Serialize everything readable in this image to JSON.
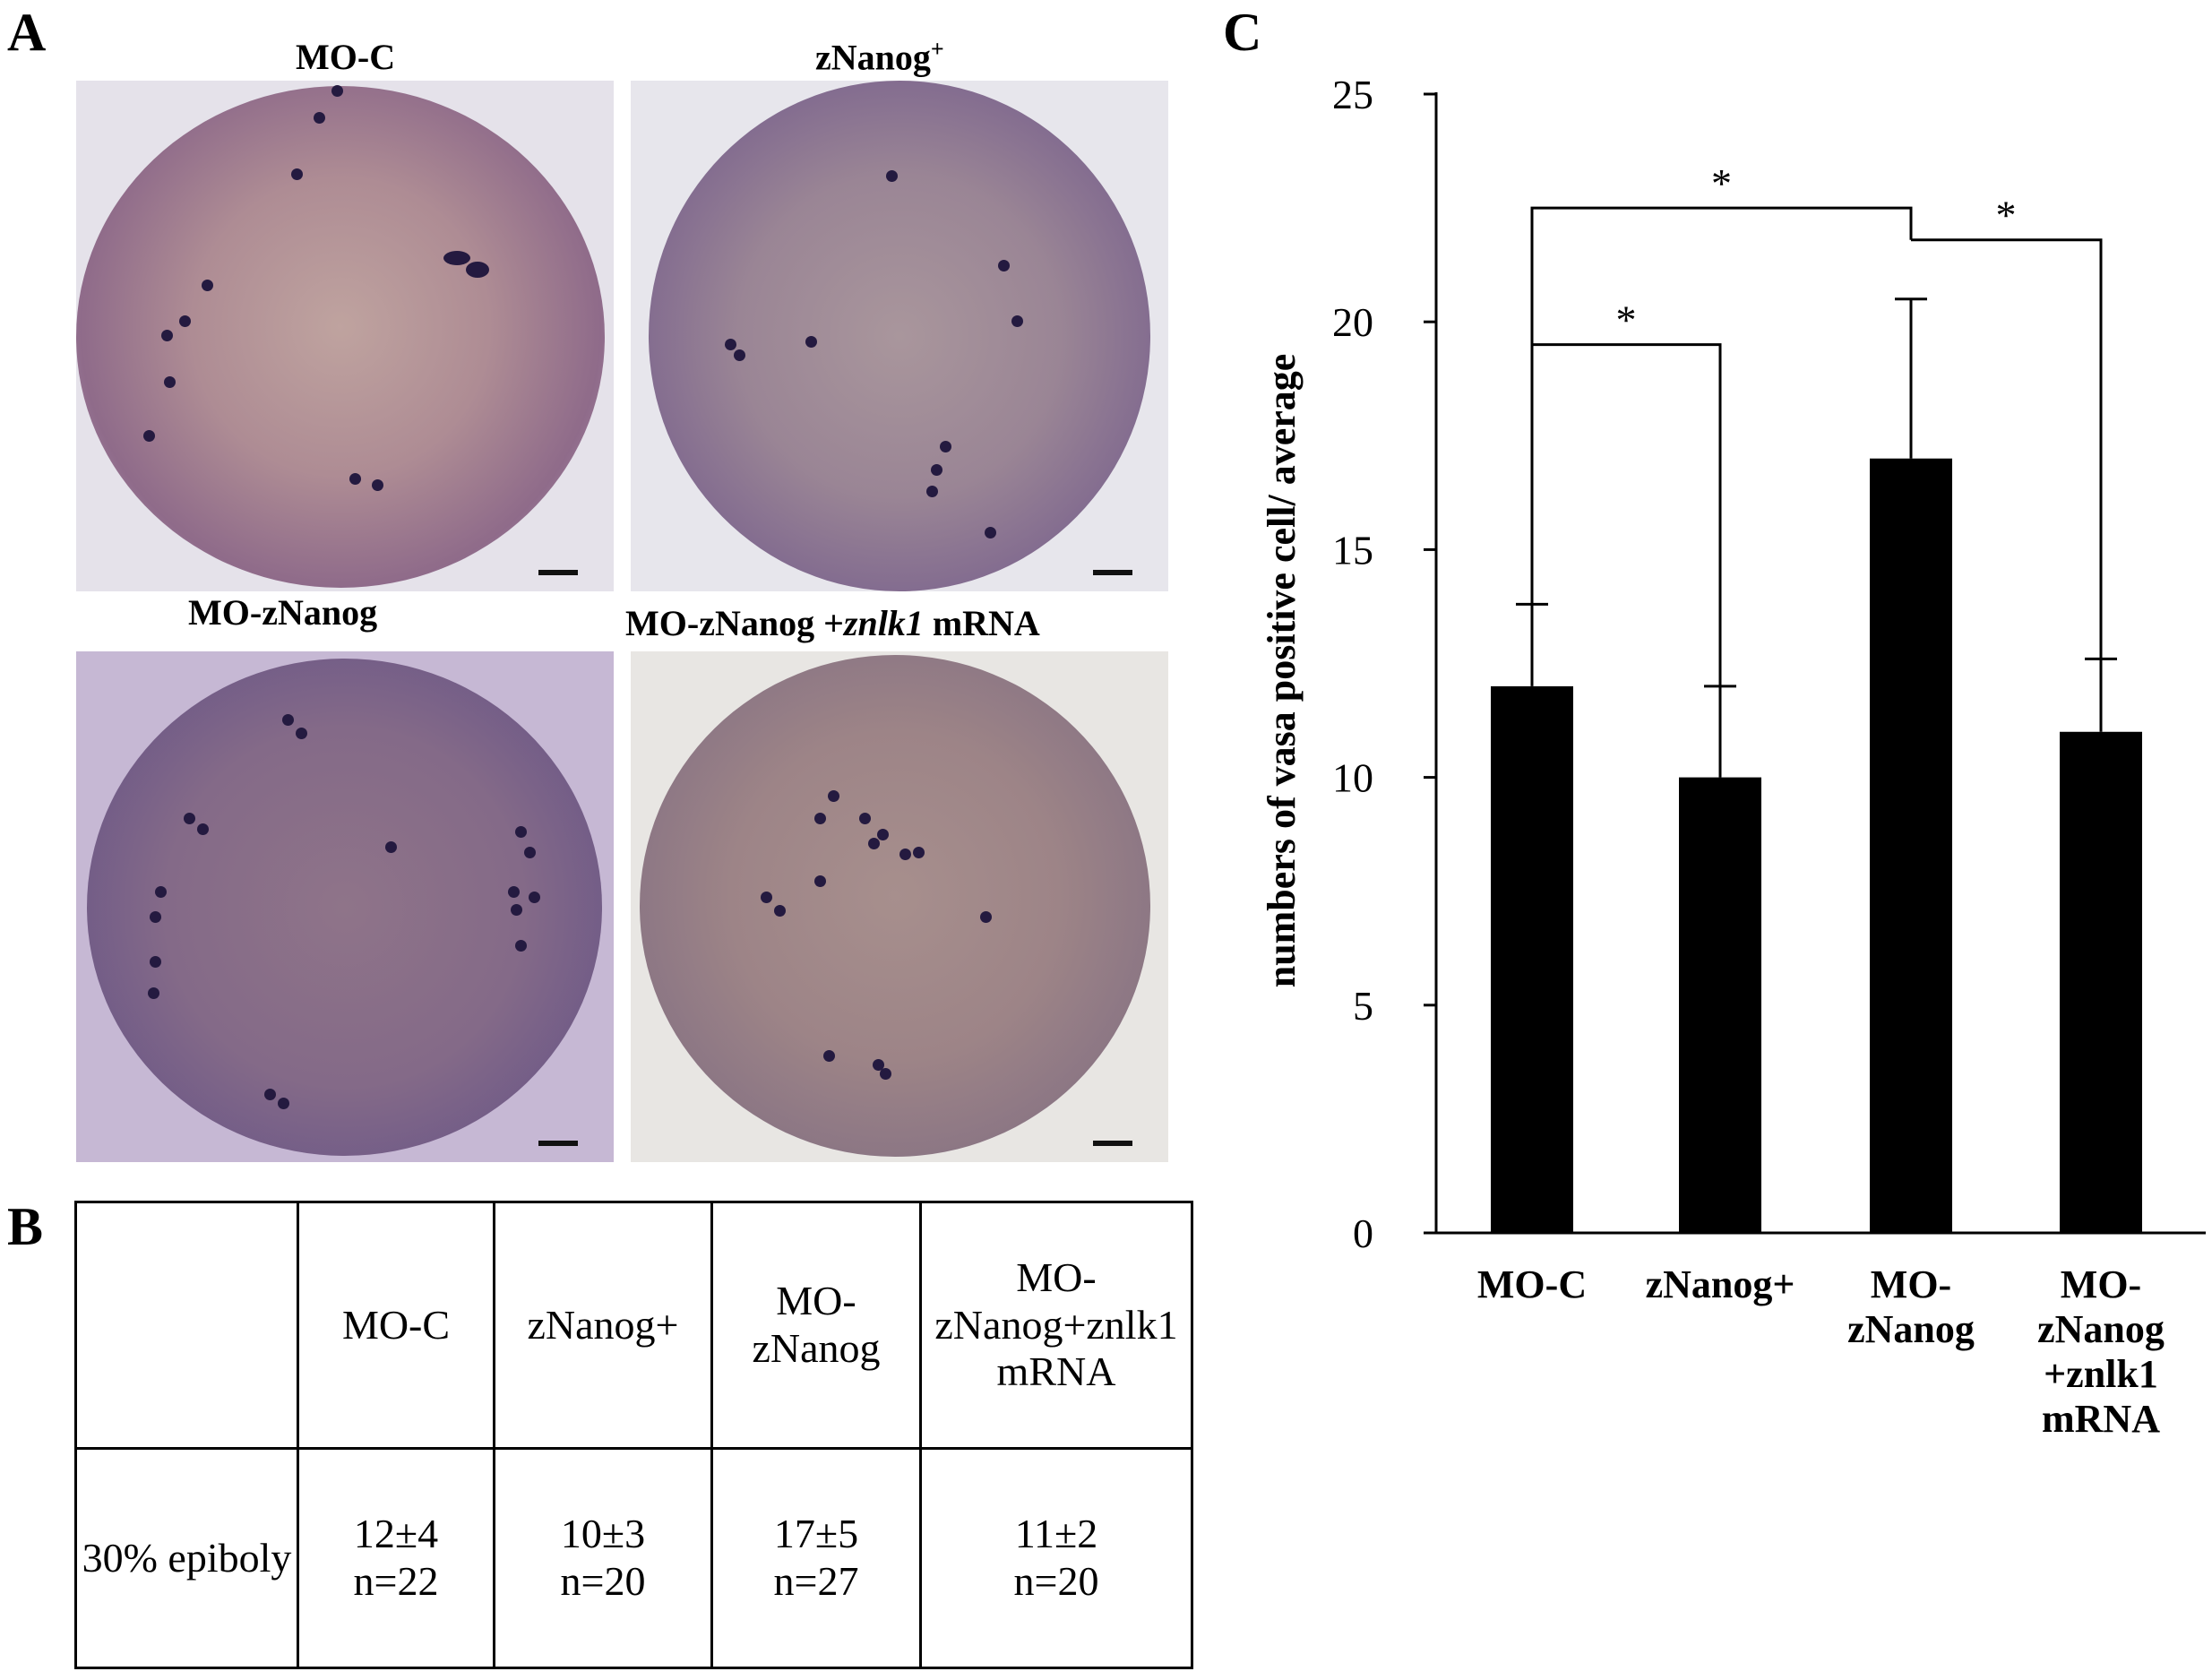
{
  "panels": {
    "a": "A",
    "b": "B",
    "c": "C"
  },
  "micrographs": [
    {
      "label": "MO-C"
    },
    {
      "label": "zNanog",
      "label_sup": "+"
    },
    {
      "label": "MO-zNanog"
    },
    {
      "label_pre": "MO-zNanog +",
      "label_italic": "znlk1",
      "label_post": " mRNA"
    }
  ],
  "table": {
    "header_cells": [
      "",
      "MO-C",
      "zNanog+",
      "MO-zNanog",
      "MO-zNanog+znlk1 mRNA"
    ],
    "row_label": "30% epiboly",
    "cells": [
      {
        "value": "12±4",
        "n": "n=22"
      },
      {
        "value": "10±3",
        "n": "n=20"
      },
      {
        "value": "17±5",
        "n": "n=27"
      },
      {
        "value": "11±2",
        "n": "n=20"
      }
    ]
  },
  "chart_data": {
    "type": "bar",
    "categories": [
      "MO-C",
      "zNanog+",
      "MO-zNanog",
      "MO-zNanog+znlk1 mRNA"
    ],
    "values": [
      12,
      10,
      17,
      11
    ],
    "error": [
      1.8,
      2.0,
      3.5,
      1.6
    ],
    "ylabel": "numbers of vasa positive cell/ average",
    "ylim": [
      0,
      25
    ],
    "yticks": [
      0,
      5,
      10,
      15,
      20,
      25
    ],
    "bar_color": "#000000",
    "grid": false,
    "significance": [
      {
        "from": "MO-C",
        "to": "zNanog+",
        "label": "*"
      },
      {
        "from": "MO-C",
        "to": "MO-zNanog",
        "label": "*"
      },
      {
        "from": "MO-zNanog",
        "to": "MO-zNanog+znlk1 mRNA",
        "label": "*"
      }
    ]
  }
}
